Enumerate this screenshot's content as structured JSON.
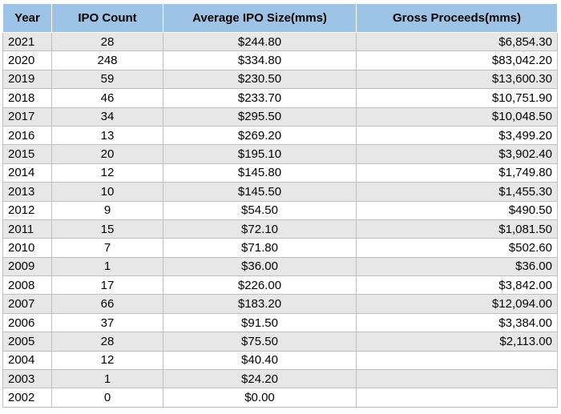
{
  "chart_data": {
    "type": "table",
    "columns": [
      "Year",
      "IPO Count",
      "Average IPO Size(mms)",
      "Gross Proceeds(mms)"
    ],
    "rows": [
      [
        "2021",
        "28",
        "$244.80",
        "$6,854.30"
      ],
      [
        "2020",
        "248",
        "$334.80",
        "$83,042.20"
      ],
      [
        "2019",
        "59",
        "$230.50",
        "$13,600.30"
      ],
      [
        "2018",
        "46",
        "$233.70",
        "$10,751.90"
      ],
      [
        "2017",
        "34",
        "$295.50",
        "$10,048.50"
      ],
      [
        "2016",
        "13",
        "$269.20",
        "$3,499.20"
      ],
      [
        "2015",
        "20",
        "$195.10",
        "$3,902.40"
      ],
      [
        "2014",
        "12",
        "$145.80",
        "$1,749.80"
      ],
      [
        "2013",
        "10",
        "$145.50",
        "$1,455.30"
      ],
      [
        "2012",
        "9",
        "$54.50",
        "$490.50"
      ],
      [
        "2011",
        "15",
        "$72.10",
        "$1,081.50"
      ],
      [
        "2010",
        "7",
        "$71.80",
        "$502.60"
      ],
      [
        "2009",
        "1",
        "$36.00",
        "$36.00"
      ],
      [
        "2008",
        "17",
        "$226.00",
        "$3,842.00"
      ],
      [
        "2007",
        "66",
        "$183.20",
        "$12,094.00"
      ],
      [
        "2006",
        "37",
        "$91.50",
        "$3,384.00"
      ],
      [
        "2005",
        "28",
        "$75.50",
        "$2,113.00"
      ],
      [
        "2004",
        "12",
        "$40.40",
        ""
      ],
      [
        "2003",
        "1",
        "$24.20",
        ""
      ],
      [
        "2002",
        "0",
        "$0.00",
        ""
      ]
    ]
  },
  "colors": {
    "header_bg": "#9dc3e6",
    "odd_row_bg": "#e7e7e7",
    "even_row_bg": "#ffffff",
    "grid_line": "#bfbfbf"
  }
}
